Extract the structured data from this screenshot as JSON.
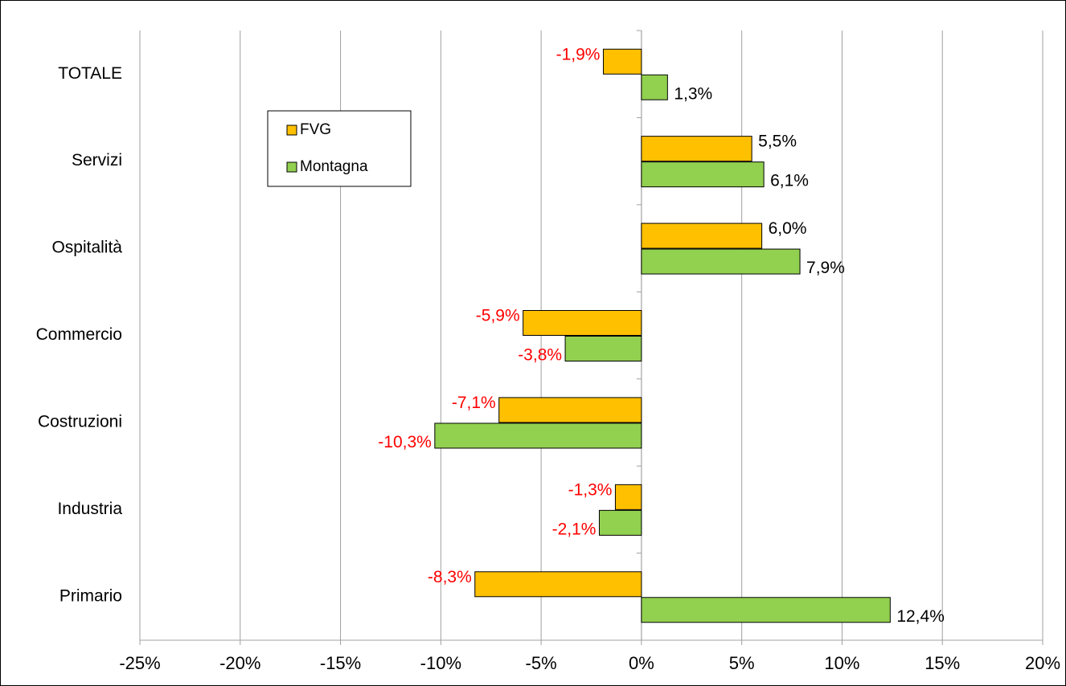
{
  "chart_data": {
    "type": "hbar",
    "categories": [
      "TOTALE",
      "Servizi",
      "Ospitalità",
      "Commercio",
      "Costruzioni",
      "Industria",
      "Primario"
    ],
    "series": [
      {
        "name": "FVG",
        "color": "#ffc000",
        "values": [
          -1.9,
          5.5,
          6.0,
          -5.9,
          -7.1,
          -1.3,
          -8.3
        ],
        "value_labels": [
          "-1,9%",
          "5,5%",
          "6,0%",
          "-5,9%",
          "-7,1%",
          "-1,3%",
          "-8,3%"
        ]
      },
      {
        "name": "Montagna",
        "color": "#92d050",
        "values": [
          1.3,
          6.1,
          7.9,
          -3.8,
          -10.3,
          -2.1,
          12.4
        ],
        "value_labels": [
          "1,3%",
          "6,1%",
          "7,9%",
          "-3,8%",
          "-10,3%",
          "-2,1%",
          "12,4%"
        ]
      }
    ],
    "xlim": [
      -25,
      20
    ],
    "xticks": [
      {
        "value": -25,
        "label": "-25%"
      },
      {
        "value": -20,
        "label": "-20%"
      },
      {
        "value": -15,
        "label": "-15%"
      },
      {
        "value": -10,
        "label": "-10%"
      },
      {
        "value": -5,
        "label": "-5%"
      },
      {
        "value": 0,
        "label": "0%"
      },
      {
        "value": 5,
        "label": "5%"
      },
      {
        "value": 10,
        "label": "10%"
      },
      {
        "value": 15,
        "label": "15%"
      },
      {
        "value": 20,
        "label": "20%"
      }
    ],
    "grid": true,
    "label_colors": {
      "negative": "#ff0000",
      "positive": "#000000"
    }
  }
}
